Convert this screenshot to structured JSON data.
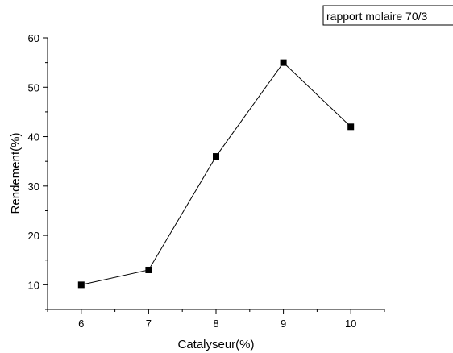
{
  "chart_data": {
    "type": "line",
    "title": "",
    "xlabel": "Catalyseur(%)",
    "ylabel": "Rendement(%)",
    "x": [
      6,
      7,
      8,
      9,
      10
    ],
    "series": [
      {
        "name": "rapport molaire 70/3",
        "values": [
          10,
          13,
          36,
          55,
          42
        ]
      }
    ],
    "xlim": [
      5.5,
      10.5
    ],
    "ylim": [
      5,
      60
    ],
    "xticks": [
      "6",
      "7",
      "8",
      "9",
      "10"
    ],
    "yticks": [
      "10",
      "20",
      "30",
      "40",
      "50",
      "60"
    ],
    "marker": "square",
    "grid": false,
    "legend_position": "top-right",
    "colors": {
      "line": "#000000",
      "marker": "#000000",
      "axis": "#000000"
    }
  }
}
